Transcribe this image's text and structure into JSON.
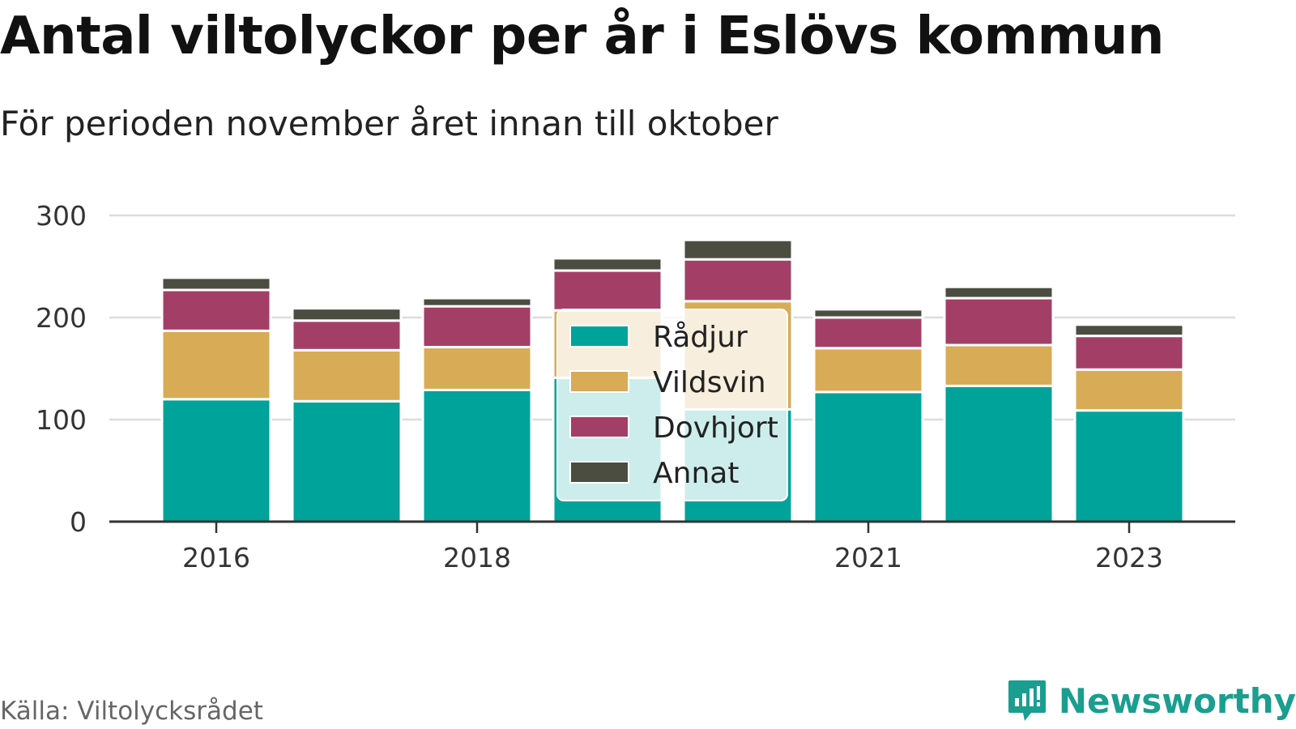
{
  "title": "Antal viltolyckor per år i Eslövs kommun",
  "subtitle": "För perioden november året innan till oktober",
  "source": "Källa: Viltolycksrådet",
  "brand": {
    "name": "Newsworthy",
    "icon": "newsworthy-logo-icon",
    "color": "#1a9e8f"
  },
  "chart_data": {
    "type": "bar",
    "stacked": true,
    "title": "Antal viltolyckor per år i Eslövs kommun",
    "subtitle": "För perioden november året innan till oktober",
    "categories": [
      "2016",
      "2017",
      "2018",
      "2019",
      "2020",
      "2021",
      "2022",
      "2023"
    ],
    "x_tick_labels": [
      "2016",
      "",
      "2018",
      "",
      "",
      "2021",
      "",
      "2023"
    ],
    "y_ticks": [
      "0",
      "100",
      "200",
      "300"
    ],
    "ylim": [
      0,
      300
    ],
    "grid": true,
    "legend_position": "center",
    "series": [
      {
        "name": "Rådjur",
        "color": "#00a39a",
        "values": [
          120,
          118,
          129,
          141,
          110,
          127,
          133,
          109
        ]
      },
      {
        "name": "Vildsvin",
        "color": "#d8ab57",
        "values": [
          67,
          50,
          42,
          66,
          106,
          43,
          40,
          40
        ]
      },
      {
        "name": "Dovhjort",
        "color": "#a33f67",
        "values": [
          40,
          29,
          40,
          39,
          41,
          30,
          46,
          33
        ]
      },
      {
        "name": "Annat",
        "color": "#4a4d40",
        "values": [
          12,
          12,
          8,
          12,
          19,
          8,
          11,
          11
        ]
      }
    ]
  }
}
